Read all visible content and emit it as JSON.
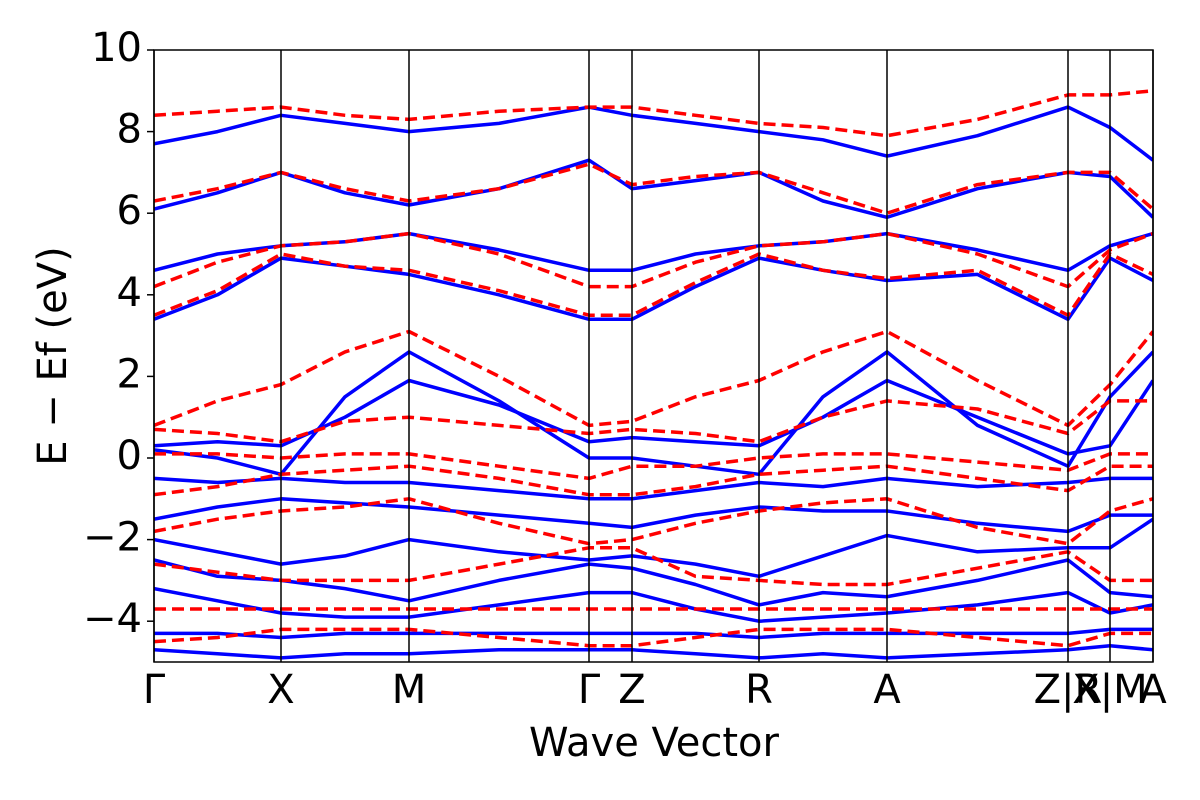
{
  "chart_data": {
    "type": "line",
    "xlabel": "Wave Vector",
    "ylabel": "E − Ef (eV)",
    "x": [
      0,
      0.635,
      1.27,
      1.91,
      2.55,
      3.45,
      4.35,
      4.78,
      5.415,
      6.05,
      6.69,
      7.33,
      8.235,
      9.14,
      9.56,
      9.99
    ],
    "xlim": [
      0,
      9.99
    ],
    "xticks": [
      {
        "value": 0,
        "label": "Γ"
      },
      {
        "value": 1.27,
        "label": "X"
      },
      {
        "value": 2.55,
        "label": "M"
      },
      {
        "value": 4.35,
        "label": "Γ"
      },
      {
        "value": 4.78,
        "label": "Z"
      },
      {
        "value": 6.05,
        "label": "R"
      },
      {
        "value": 7.33,
        "label": "A"
      },
      {
        "value": 9.14,
        "label": "Z|R"
      },
      {
        "value": 9.56,
        "label": "X|M"
      },
      {
        "value": 9.99,
        "label": "A"
      }
    ],
    "ylim": [
      -5,
      10
    ],
    "yticks": [
      {
        "value": -4,
        "label": "−4"
      },
      {
        "value": -2,
        "label": "−2"
      },
      0,
      2,
      4,
      6,
      8,
      10
    ],
    "series": [
      {
        "color": "#0000ff",
        "dash": false,
        "bands": [
          [
            3.4,
            4.0,
            4.9,
            4.7,
            4.5,
            4.0,
            3.4,
            3.4,
            4.2,
            4.9,
            4.6,
            4.35,
            4.5,
            3.4,
            4.9,
            4.35
          ],
          [
            4.6,
            5.0,
            5.2,
            5.3,
            5.5,
            5.1,
            4.6,
            4.6,
            5.0,
            5.2,
            5.3,
            5.5,
            5.1,
            4.6,
            5.2,
            5.5
          ],
          [
            6.1,
            6.5,
            7.0,
            6.5,
            6.2,
            6.6,
            7.3,
            6.6,
            6.8,
            7.0,
            6.3,
            5.9,
            6.6,
            7.0,
            6.9,
            5.9
          ],
          [
            7.7,
            8.0,
            8.4,
            8.2,
            8.0,
            8.2,
            8.6,
            8.4,
            8.2,
            8.0,
            7.8,
            7.4,
            7.9,
            8.6,
            8.1,
            7.3
          ],
          [
            0.3,
            0.4,
            0.3,
            1.0,
            1.9,
            1.3,
            0.4,
            0.5,
            0.4,
            0.3,
            1.0,
            1.9,
            1.0,
            0.1,
            0.3,
            1.9
          ],
          [
            0.2,
            0.0,
            -0.4,
            1.5,
            2.6,
            1.4,
            0.0,
            0.0,
            -0.2,
            -0.4,
            1.5,
            2.6,
            0.8,
            -0.2,
            1.5,
            2.6
          ],
          [
            -0.5,
            -0.6,
            -0.5,
            -0.6,
            -0.6,
            -0.8,
            -1.0,
            -1.0,
            -0.8,
            -0.6,
            -0.7,
            -0.5,
            -0.7,
            -0.6,
            -0.5,
            -0.5
          ],
          [
            -1.5,
            -1.2,
            -1.0,
            -1.1,
            -1.2,
            -1.4,
            -1.6,
            -1.7,
            -1.4,
            -1.2,
            -1.3,
            -1.3,
            -1.6,
            -1.8,
            -1.4,
            -1.4
          ],
          [
            -2.0,
            -2.3,
            -2.6,
            -2.4,
            -2.0,
            -2.3,
            -2.5,
            -2.4,
            -2.6,
            -2.9,
            -2.4,
            -1.9,
            -2.3,
            -2.2,
            -2.2,
            -1.5
          ],
          [
            -2.5,
            -2.9,
            -3.0,
            -3.2,
            -3.5,
            -3.0,
            -2.6,
            -2.7,
            -3.1,
            -3.6,
            -3.3,
            -3.4,
            -3.0,
            -2.5,
            -3.3,
            -3.4
          ],
          [
            -3.2,
            -3.5,
            -3.8,
            -3.9,
            -3.9,
            -3.6,
            -3.3,
            -3.3,
            -3.7,
            -4.0,
            -3.9,
            -3.8,
            -3.6,
            -3.3,
            -3.8,
            -3.6
          ],
          [
            -4.3,
            -4.3,
            -4.4,
            -4.3,
            -4.3,
            -4.3,
            -4.3,
            -4.3,
            -4.3,
            -4.4,
            -4.3,
            -4.3,
            -4.3,
            -4.3,
            -4.2,
            -4.2
          ],
          [
            -4.7,
            -4.8,
            -4.9,
            -4.8,
            -4.8,
            -4.7,
            -4.7,
            -4.7,
            -4.8,
            -4.9,
            -4.8,
            -4.9,
            -4.8,
            -4.7,
            -4.6,
            -4.7
          ]
        ]
      },
      {
        "color": "#ff0000",
        "dash": true,
        "bands": [
          [
            3.5,
            4.1,
            5.0,
            4.7,
            4.6,
            4.1,
            3.5,
            3.5,
            4.3,
            5.0,
            4.6,
            4.4,
            4.6,
            3.5,
            5.0,
            4.5
          ],
          [
            4.2,
            4.8,
            5.2,
            5.3,
            5.5,
            5.0,
            4.2,
            4.2,
            4.8,
            5.2,
            5.3,
            5.5,
            5.0,
            4.2,
            5.1,
            5.5
          ],
          [
            6.3,
            6.6,
            7.0,
            6.6,
            6.3,
            6.6,
            7.2,
            6.7,
            6.9,
            7.0,
            6.5,
            6.0,
            6.7,
            7.0,
            7.0,
            6.1
          ],
          [
            8.4,
            8.5,
            8.6,
            8.4,
            8.3,
            8.5,
            8.6,
            8.6,
            8.4,
            8.2,
            8.1,
            7.9,
            8.3,
            8.9,
            8.9,
            9.0
          ],
          [
            0.8,
            1.4,
            1.8,
            2.6,
            3.1,
            2.0,
            0.8,
            0.9,
            1.5,
            1.9,
            2.6,
            3.1,
            1.9,
            0.8,
            1.8,
            3.1
          ],
          [
            0.7,
            0.6,
            0.4,
            0.9,
            1.0,
            0.8,
            0.6,
            0.7,
            0.6,
            0.4,
            1.0,
            1.4,
            1.2,
            0.6,
            1.4,
            1.4
          ],
          [
            0.1,
            0.1,
            0.0,
            0.1,
            0.1,
            -0.2,
            -0.5,
            -0.2,
            -0.2,
            0.0,
            0.1,
            0.1,
            -0.1,
            -0.3,
            0.1,
            0.1
          ],
          [
            -0.9,
            -0.7,
            -0.4,
            -0.3,
            -0.2,
            -0.5,
            -0.9,
            -0.9,
            -0.7,
            -0.4,
            -0.3,
            -0.2,
            -0.5,
            -0.8,
            -0.2,
            -0.2
          ],
          [
            -1.8,
            -1.5,
            -1.3,
            -1.2,
            -1.0,
            -1.6,
            -2.1,
            -2.0,
            -1.6,
            -1.3,
            -1.1,
            -1.0,
            -1.7,
            -2.1,
            -1.3,
            -1.0
          ],
          [
            -2.6,
            -2.8,
            -3.0,
            -3.0,
            -3.0,
            -2.6,
            -2.2,
            -2.2,
            -2.9,
            -3.0,
            -3.1,
            -3.1,
            -2.7,
            -2.3,
            -3.0,
            -3.0
          ],
          [
            -3.7,
            -3.7,
            -3.7,
            -3.7,
            -3.7,
            -3.7,
            -3.7,
            -3.7,
            -3.7,
            -3.7,
            -3.7,
            -3.7,
            -3.7,
            -3.7,
            -3.7,
            -3.7
          ],
          [
            -4.5,
            -4.4,
            -4.2,
            -4.2,
            -4.2,
            -4.4,
            -4.6,
            -4.6,
            -4.4,
            -4.2,
            -4.2,
            -4.2,
            -4.4,
            -4.6,
            -4.3,
            -4.3
          ]
        ]
      }
    ]
  }
}
